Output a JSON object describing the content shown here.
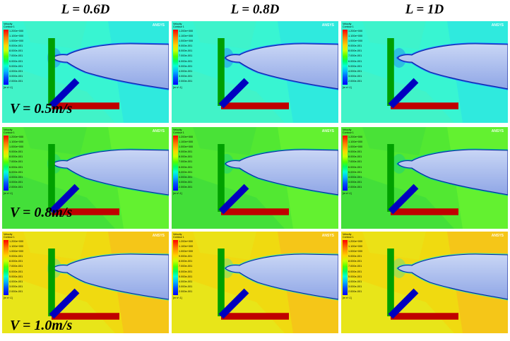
{
  "columns": [
    {
      "label": "L = 0.6D"
    },
    {
      "label": "L = 0.8D"
    },
    {
      "label": "L = 1D"
    }
  ],
  "rows": [
    {
      "label": "V = 0.5m/s",
      "bg": "#38f5d2",
      "bg2": "#2ee8e0",
      "bg3": "#44f2c4",
      "edge": "#1e5bff"
    },
    {
      "label": "V = 0.8m/s",
      "bg": "#52e832",
      "bg2": "#66f230",
      "bg3": "#3fdc3c",
      "edge": "#00c8a0"
    },
    {
      "label": "V = 1.0m/s",
      "bg": "#f0da10",
      "bg2": "#f6c21a",
      "bg3": "#e6e81c",
      "edge": "#30e0b4"
    }
  ],
  "legend": {
    "title": "Velocity",
    "subtitle": "Contour 1",
    "labels": [
      "1.200e+000",
      "1.100e+000",
      "1.000e+000",
      "9.000e-001",
      "8.000e-001",
      "7.000e-001",
      "6.000e-001",
      "5.000e-001",
      "4.000e-001",
      "3.000e-001",
      "2.000e-001"
    ],
    "unit": "[m s^-1]"
  },
  "watermark": "ANSYS",
  "colors": {
    "hull_fill_top": "#c9d6f5",
    "hull_fill_bottom": "#8fa6e6",
    "hull_outline": "#0a1f9e"
  }
}
